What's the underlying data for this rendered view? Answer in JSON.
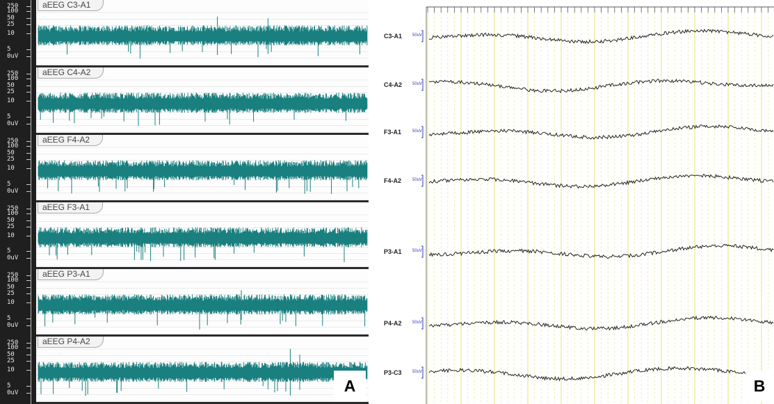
{
  "panel_a": {
    "letter": "A",
    "scale_labels": [
      "250",
      "100",
      "50",
      "25",
      "10",
      "5",
      "0uV"
    ],
    "channels": [
      {
        "label": "aEEG C3-A1"
      },
      {
        "label": "aEEG C4-A2"
      },
      {
        "label": "aEEG  F4-A2"
      },
      {
        "label": "aEEG  F3-A1"
      },
      {
        "label": "aEEG  P3-A1"
      },
      {
        "label": "aEEG  P4-A2"
      }
    ],
    "trace_color": "#1a7f7f"
  },
  "panel_b": {
    "letter": "B",
    "calibration_label": "50uV",
    "channels": [
      {
        "label": "C3-A1"
      },
      {
        "label": "C4-A2"
      },
      {
        "label": "F3-A1"
      },
      {
        "label": "F4-A2"
      },
      {
        "label": "P3-A1"
      },
      {
        "label": "P4-A2"
      },
      {
        "label": "P3-C3"
      }
    ],
    "trace_color": "#222222",
    "grid_color": "#e9e98a"
  }
}
